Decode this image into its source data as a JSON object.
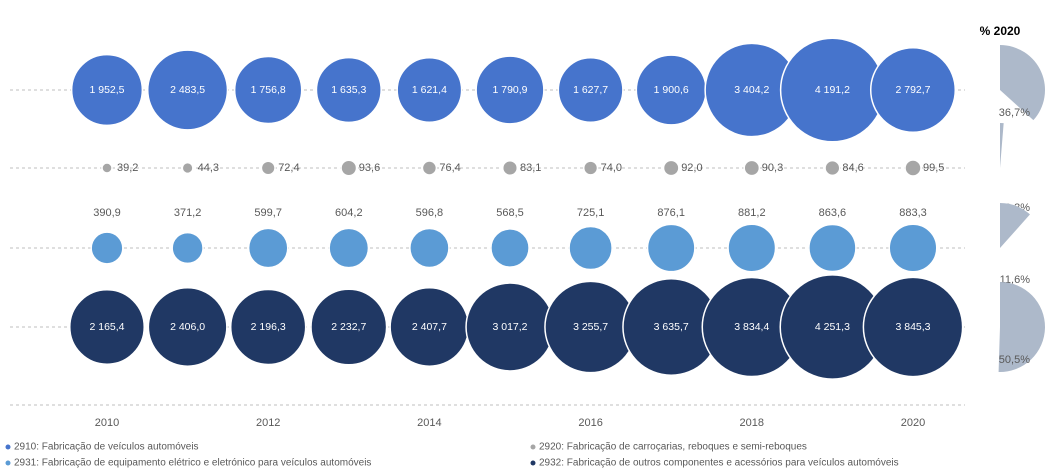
{
  "chart_data": {
    "type": "bubble",
    "share_title": "% 2020",
    "x": [
      2010,
      2011,
      2012,
      2013,
      2014,
      2015,
      2016,
      2017,
      2018,
      2019,
      2020
    ],
    "xlim": [
      2009,
      2021
    ],
    "xticks": [
      2010,
      2012,
      2014,
      2016,
      2018,
      2020
    ],
    "series": [
      {
        "name": "2910: Fabricação de veículos automóveis",
        "color": "#4674cc",
        "values": [
          1952.5,
          2483.5,
          1756.8,
          1635.3,
          1621.4,
          1790.9,
          1627.7,
          1900.6,
          3404.2,
          4191.2,
          2792.7
        ],
        "value_labels": [
          "1 952,5",
          "2 483,5",
          "1 756,8",
          "1 635,3",
          "1 621,4",
          "1 790,9",
          "1 627,7",
          "1 900,6",
          "3 404,2",
          "4 191,2",
          "2 792,7"
        ],
        "share": 36.7,
        "share_label": "36,7%"
      },
      {
        "name": "2920: Fabricação de carroçarias, reboques e semi-reboques",
        "color": "#a6a6a6",
        "values": [
          39.2,
          44.3,
          72.4,
          93.6,
          76.4,
          83.1,
          74.0,
          92.0,
          90.3,
          84.6,
          99.5
        ],
        "value_labels": [
          "39,2",
          "44,3",
          "72,4",
          "93,6",
          "76,4",
          "83,1",
          "74,0",
          "92,0",
          "90,3",
          "84,6",
          "99,5"
        ],
        "share": 1.3,
        "share_label": "1,3%"
      },
      {
        "name": "2931: Fabricação de equipamento elétrico e eletrónico para veículos automóveis",
        "color": "#5b9bd5",
        "values": [
          390.9,
          371.2,
          599.7,
          604.2,
          596.8,
          568.5,
          725.1,
          876.1,
          881.2,
          863.6,
          883.3
        ],
        "value_labels": [
          "390,9",
          "371,2",
          "599,7",
          "604,2",
          "596,8",
          "568,5",
          "725,1",
          "876,1",
          "881,2",
          "863,6",
          "883,3"
        ],
        "share": 11.6,
        "share_label": "11,6%"
      },
      {
        "name": "2932: Fabricação de outros componentes e acessórios para veículos automóveis",
        "color": "#203864",
        "values": [
          2165.4,
          2406.0,
          2196.3,
          2232.7,
          2407.7,
          3017.2,
          3255.7,
          3635.7,
          3834.4,
          4251.3,
          3845.3
        ],
        "value_labels": [
          "2 165,4",
          "2 406,0",
          "2 196,3",
          "2 232,7",
          "2 407,7",
          "3 017,2",
          "3 255,7",
          "3 635,7",
          "3 834,4",
          "4 251,3",
          "3 845,3"
        ],
        "share": 50.5,
        "share_label": "50,5%"
      }
    ]
  }
}
